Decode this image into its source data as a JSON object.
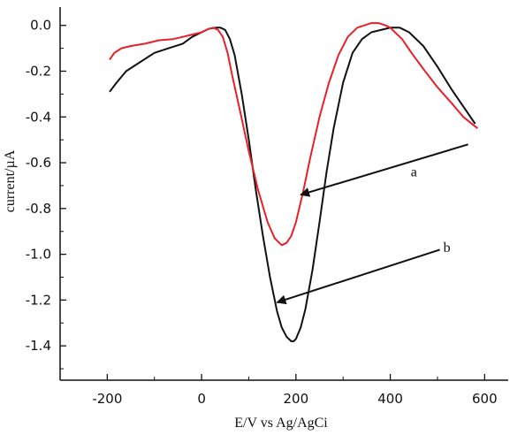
{
  "chart_data": {
    "type": "line",
    "xlabel": "E/V vs Ag/AgCi",
    "ylabel": "current/µA",
    "xlim": [
      -300,
      650
    ],
    "ylim": [
      -1.55,
      0.08
    ],
    "x_ticks": [
      -200,
      0,
      200,
      400,
      600
    ],
    "x_tick_labels": [
      "-200",
      "0",
      "200",
      "400",
      "600"
    ],
    "y_ticks": [
      0.0,
      -0.2,
      -0.4,
      -0.6,
      -0.8,
      -1.0,
      -1.2,
      -1.4
    ],
    "y_tick_labels": [
      "0.0",
      "-0.2",
      "-0.4",
      "-0.6",
      "-0.8",
      "-1.0",
      "-1.2",
      "-1.4"
    ],
    "grid": false,
    "series": [
      {
        "name": "a",
        "color": "#e8202a",
        "x": [
          -195,
          -185,
          -170,
          -150,
          -120,
          -90,
          -60,
          -40,
          -20,
          0,
          15,
          25,
          35,
          45,
          55,
          65,
          80,
          100,
          120,
          140,
          155,
          170,
          180,
          190,
          200,
          215,
          230,
          250,
          270,
          290,
          310,
          330,
          345,
          360,
          375,
          390,
          400,
          410,
          425,
          445,
          470,
          500,
          530,
          555,
          585
        ],
        "y": [
          -0.15,
          -0.12,
          -0.1,
          -0.09,
          -0.08,
          -0.065,
          -0.06,
          -0.05,
          -0.04,
          -0.03,
          -0.015,
          -0.01,
          -0.02,
          -0.05,
          -0.12,
          -0.22,
          -0.36,
          -0.55,
          -0.72,
          -0.86,
          -0.93,
          -0.96,
          -0.95,
          -0.92,
          -0.86,
          -0.73,
          -0.58,
          -0.4,
          -0.25,
          -0.13,
          -0.05,
          -0.01,
          0.0,
          0.01,
          0.01,
          0.0,
          -0.01,
          -0.03,
          -0.06,
          -0.12,
          -0.19,
          -0.27,
          -0.34,
          -0.4,
          -0.45
        ]
      },
      {
        "name": "b",
        "color": "#111111",
        "x": [
          -195,
          -180,
          -160,
          -130,
          -100,
          -70,
          -40,
          -20,
          0,
          15,
          30,
          40,
          50,
          60,
          70,
          85,
          100,
          115,
          130,
          145,
          160,
          170,
          180,
          190,
          195,
          200,
          210,
          220,
          235,
          250,
          265,
          280,
          300,
          320,
          340,
          360,
          380,
          400,
          420,
          440,
          470,
          500,
          530,
          560,
          580
        ],
        "y": [
          -0.29,
          -0.25,
          -0.2,
          -0.16,
          -0.12,
          -0.1,
          -0.08,
          -0.05,
          -0.03,
          -0.015,
          -0.01,
          -0.01,
          -0.02,
          -0.06,
          -0.13,
          -0.3,
          -0.5,
          -0.72,
          -0.92,
          -1.1,
          -1.25,
          -1.32,
          -1.36,
          -1.38,
          -1.38,
          -1.37,
          -1.32,
          -1.24,
          -1.07,
          -0.86,
          -0.64,
          -0.45,
          -0.25,
          -0.12,
          -0.06,
          -0.03,
          -0.02,
          -0.01,
          -0.01,
          -0.03,
          -0.09,
          -0.18,
          -0.28,
          -0.37,
          -0.43
        ]
      }
    ],
    "annotations": [
      {
        "label": "a",
        "text_x": 450,
        "text_y": -0.64,
        "arrow_from": [
          565,
          -0.52
        ],
        "arrow_to": [
          210,
          -0.74
        ]
      },
      {
        "label": "b",
        "text_x": 520,
        "text_y": -0.97,
        "arrow_from": [
          505,
          -0.98
        ],
        "arrow_to": [
          160,
          -1.21
        ]
      }
    ]
  }
}
